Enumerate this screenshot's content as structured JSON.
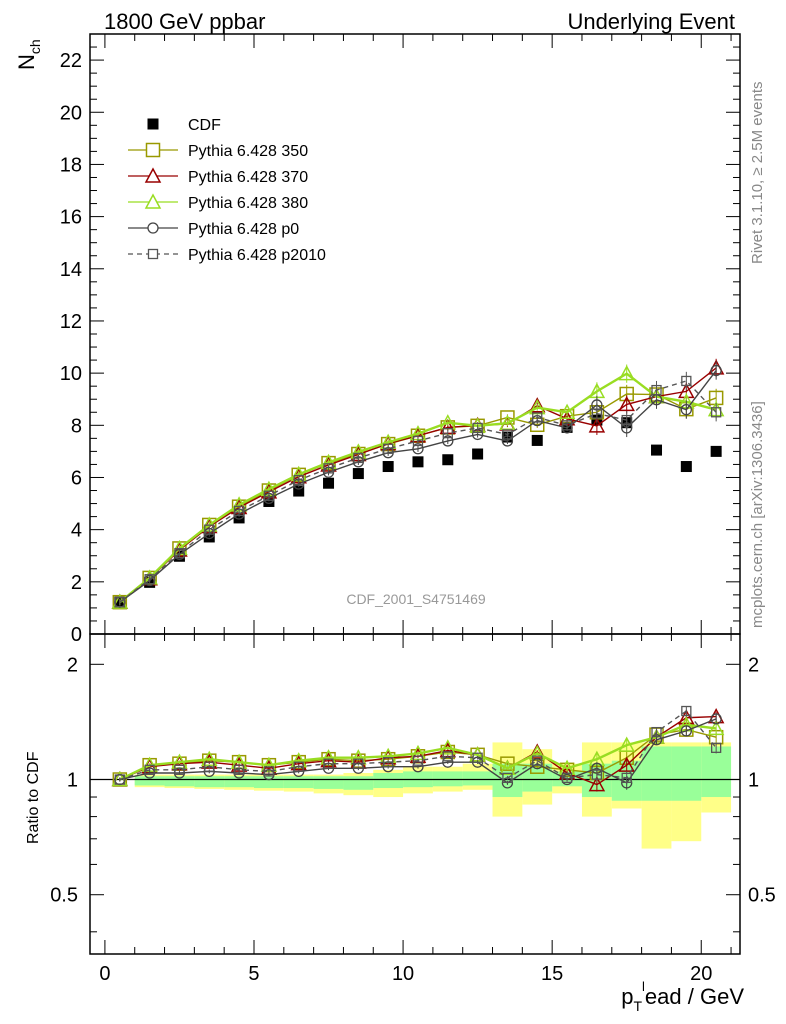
{
  "header": {
    "left": "1800 GeV ppbar",
    "right": "Underlying Event"
  },
  "side_labels": {
    "rivet": "Rivet 3.1.10, ≥ 2.5M events",
    "mcplots": "mcplots.cern.ch [arXiv:1306.3436]"
  },
  "watermark": "CDF_2001_S4751469",
  "axes": {
    "xlabel_main": "p",
    "xlabel_sub": "T",
    "xlabel_sup": "l",
    "xlabel_rest": "ead / GeV",
    "ylabel_main": "N",
    "ylabel_sub": "ch",
    "ratio_ylabel": "Ratio to CDF"
  },
  "chart_data": [
    {
      "type": "scatter",
      "panel": "main",
      "xlim": [
        -0.5,
        21.3
      ],
      "ylim": [
        0,
        23
      ],
      "xticks": [
        0,
        5,
        10,
        15,
        20
      ],
      "xtick_labels": [
        "0",
        "5",
        "10",
        "15",
        "20"
      ],
      "yticks": [
        0,
        2,
        4,
        6,
        8,
        10,
        12,
        14,
        16,
        18,
        20,
        22
      ],
      "ytick_labels": [
        "0",
        "2",
        "4",
        "6",
        "8",
        "10",
        "12",
        "14",
        "16",
        "18",
        "20",
        "22"
      ],
      "legend_position": "top-left",
      "x": [
        0.5,
        1.5,
        2.5,
        3.5,
        4.5,
        5.5,
        6.5,
        7.5,
        8.5,
        9.5,
        10.5,
        11.5,
        12.5,
        13.5,
        14.5,
        15.5,
        16.5,
        17.5,
        18.5,
        19.5,
        20.5
      ],
      "series": [
        {
          "name": "CDF",
          "color": "#000000",
          "marker": "filled-square",
          "values": [
            1.22,
            1.98,
            2.98,
            3.72,
            4.45,
            5.08,
            5.48,
            5.78,
            6.15,
            6.42,
            6.6,
            6.68,
            6.9,
            7.55,
            7.42,
            7.92,
            8.2,
            8.1,
            7.05,
            6.42,
            7.0
          ]
        },
        {
          "name": "Pythia 6.428 350",
          "color": "#999900",
          "marker": "open-square",
          "line": "solid",
          "values": [
            1.22,
            2.15,
            3.28,
            4.18,
            4.88,
            5.5,
            6.1,
            6.55,
            6.9,
            7.28,
            7.6,
            7.92,
            7.98,
            8.3,
            8.02,
            8.35,
            8.5,
            9.2,
            9.18,
            8.62,
            9.05
          ]
        },
        {
          "name": "Pythia 6.428 370",
          "color": "#990000",
          "marker": "open-triangle",
          "line": "solid",
          "values": [
            1.22,
            2.12,
            3.22,
            4.12,
            4.85,
            5.45,
            6.03,
            6.48,
            6.88,
            7.3,
            7.6,
            7.92,
            8.0,
            8.05,
            8.75,
            8.25,
            7.98,
            8.8,
            9.1,
            9.3,
            10.2
          ]
        },
        {
          "name": "Pythia 6.428 380",
          "color": "#99dd22",
          "marker": "open-triangle",
          "line": "solid",
          "values": [
            1.22,
            2.15,
            3.28,
            4.18,
            4.95,
            5.55,
            6.12,
            6.58,
            6.98,
            7.35,
            7.68,
            8.1,
            7.98,
            8.08,
            8.68,
            8.5,
            9.3,
            9.98,
            9.1,
            8.9,
            8.6
          ]
        },
        {
          "name": "Pythia 6.428 p0",
          "color": "#444444",
          "marker": "open-circle",
          "line": "solid",
          "values": [
            1.22,
            2.05,
            3.05,
            3.85,
            4.6,
            5.2,
            5.75,
            6.2,
            6.6,
            6.95,
            7.1,
            7.4,
            7.65,
            7.4,
            8.18,
            7.9,
            8.78,
            7.9,
            8.98,
            8.6,
            10.1
          ]
        },
        {
          "name": "Pythia 6.428 p2010",
          "color": "#555555",
          "marker": "open-square-small",
          "line": "dashed",
          "values": [
            1.22,
            2.1,
            3.1,
            4.0,
            4.72,
            5.3,
            5.9,
            6.35,
            6.75,
            7.1,
            7.4,
            7.7,
            7.9,
            7.65,
            8.3,
            8.0,
            8.45,
            8.2,
            9.35,
            9.7,
            8.5
          ]
        }
      ]
    },
    {
      "type": "scatter",
      "panel": "ratio",
      "xlim": [
        -0.5,
        21.3
      ],
      "ylim": [
        0.35,
        2.4
      ],
      "yscale": "log",
      "yticks": [
        0.5,
        1,
        2
      ],
      "ytick_labels": [
        "0.5",
        "1",
        "2"
      ],
      "x": [
        0.5,
        1.5,
        2.5,
        3.5,
        4.5,
        5.5,
        6.5,
        7.5,
        8.5,
        9.5,
        10.5,
        11.5,
        12.5,
        13.5,
        14.5,
        15.5,
        16.5,
        17.5,
        18.5,
        19.5,
        20.5
      ],
      "band_x_edges": [
        1,
        2,
        3,
        4,
        5,
        6,
        7,
        8,
        9,
        10,
        11,
        12,
        13,
        14,
        15,
        16,
        17,
        18,
        19,
        20,
        21
      ],
      "bands": {
        "inner": {
          "color": "#99ff99",
          "low": [
            0.97,
            0.965,
            0.96,
            0.955,
            0.955,
            0.95,
            0.95,
            0.945,
            0.94,
            0.95,
            0.955,
            0.96,
            0.965,
            0.9,
            0.93,
            0.96,
            0.9,
            0.88,
            0.88,
            0.88,
            0.9
          ],
          "high": [
            1.02,
            1.02,
            1.02,
            1.02,
            1.02,
            1.02,
            1.02,
            1.02,
            1.02,
            1.04,
            1.05,
            1.05,
            1.05,
            1.1,
            1.1,
            1.05,
            1.1,
            1.12,
            1.22,
            1.22,
            1.22
          ]
        },
        "outer": {
          "color": "#ffff88",
          "low": [
            0.96,
            0.955,
            0.95,
            0.945,
            0.94,
            0.935,
            0.93,
            0.92,
            0.91,
            0.9,
            0.92,
            0.93,
            0.94,
            0.8,
            0.86,
            0.92,
            0.8,
            0.84,
            0.66,
            0.69,
            0.82
          ],
          "high": [
            1.03,
            1.03,
            1.03,
            1.03,
            1.03,
            1.03,
            1.03,
            1.03,
            1.04,
            1.06,
            1.08,
            1.08,
            1.1,
            1.25,
            1.2,
            1.1,
            1.25,
            1.25,
            1.25,
            1.25,
            1.25
          ]
        }
      },
      "series": [
        {
          "name": "Pythia 6.428 350",
          "color": "#999900",
          "marker": "open-square",
          "line": "solid",
          "values": [
            1.0,
            1.09,
            1.1,
            1.12,
            1.11,
            1.09,
            1.11,
            1.13,
            1.12,
            1.13,
            1.15,
            1.18,
            1.16,
            1.1,
            1.08,
            1.06,
            1.04,
            1.14,
            1.31,
            1.35,
            1.29
          ]
        },
        {
          "name": "Pythia 6.428 370",
          "color": "#990000",
          "marker": "open-triangle",
          "line": "solid",
          "values": [
            1.0,
            1.08,
            1.1,
            1.11,
            1.09,
            1.07,
            1.1,
            1.12,
            1.11,
            1.14,
            1.15,
            1.19,
            1.16,
            1.07,
            1.18,
            1.04,
            0.97,
            1.09,
            1.29,
            1.45,
            1.46
          ]
        },
        {
          "name": "Pythia 6.428 380",
          "color": "#99dd22",
          "marker": "open-triangle",
          "line": "solid",
          "values": [
            1.0,
            1.09,
            1.11,
            1.13,
            1.11,
            1.09,
            1.12,
            1.14,
            1.14,
            1.15,
            1.17,
            1.21,
            1.16,
            1.07,
            1.17,
            1.07,
            1.13,
            1.23,
            1.29,
            1.39,
            1.36
          ]
        },
        {
          "name": "Pythia 6.428 p0",
          "color": "#444444",
          "marker": "open-circle",
          "line": "solid",
          "values": [
            1.0,
            1.04,
            1.04,
            1.05,
            1.04,
            1.03,
            1.05,
            1.07,
            1.07,
            1.08,
            1.08,
            1.11,
            1.11,
            0.98,
            1.1,
            1.0,
            1.07,
            0.98,
            1.27,
            1.34,
            1.44
          ]
        },
        {
          "name": "Pythia 6.428 p2010",
          "color": "#555555",
          "marker": "open-square-small",
          "line": "dashed",
          "values": [
            1.0,
            1.06,
            1.06,
            1.08,
            1.06,
            1.05,
            1.08,
            1.1,
            1.1,
            1.11,
            1.12,
            1.15,
            1.14,
            1.01,
            1.12,
            1.01,
            1.03,
            1.01,
            1.33,
            1.51,
            1.21
          ]
        }
      ]
    }
  ]
}
